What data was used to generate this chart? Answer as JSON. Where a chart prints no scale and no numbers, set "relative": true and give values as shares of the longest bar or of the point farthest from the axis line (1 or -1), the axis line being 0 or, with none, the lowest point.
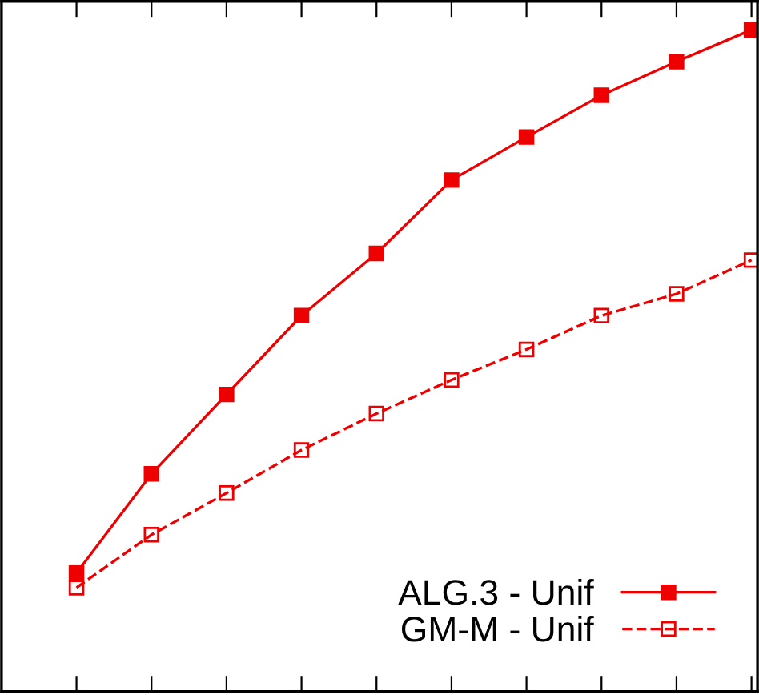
{
  "chart_data": {
    "type": "line",
    "relative": true,
    "categories": [
      null,
      null,
      null,
      null,
      null,
      null,
      null,
      null,
      null,
      null
    ],
    "grid": false,
    "legend": "bottom right",
    "series": [
      {
        "name": "ALG.3 - Unif",
        "color": "#ee0000",
        "marker": "square",
        "line_style": "solid",
        "values": [
          0.179,
          0.329,
          0.449,
          0.568,
          0.662,
          0.773,
          0.838,
          0.901,
          0.952,
          1
        ]
      },
      {
        "name": "GM-M - Unif",
        "color": "#ee0000",
        "marker": "square",
        "line_style": "dashed",
        "values": [
          0.157,
          0.237,
          0.3,
          0.365,
          0.42,
          0.471,
          0.517,
          0.568,
          0.601,
          0.652
        ]
      }
    ]
  }
}
